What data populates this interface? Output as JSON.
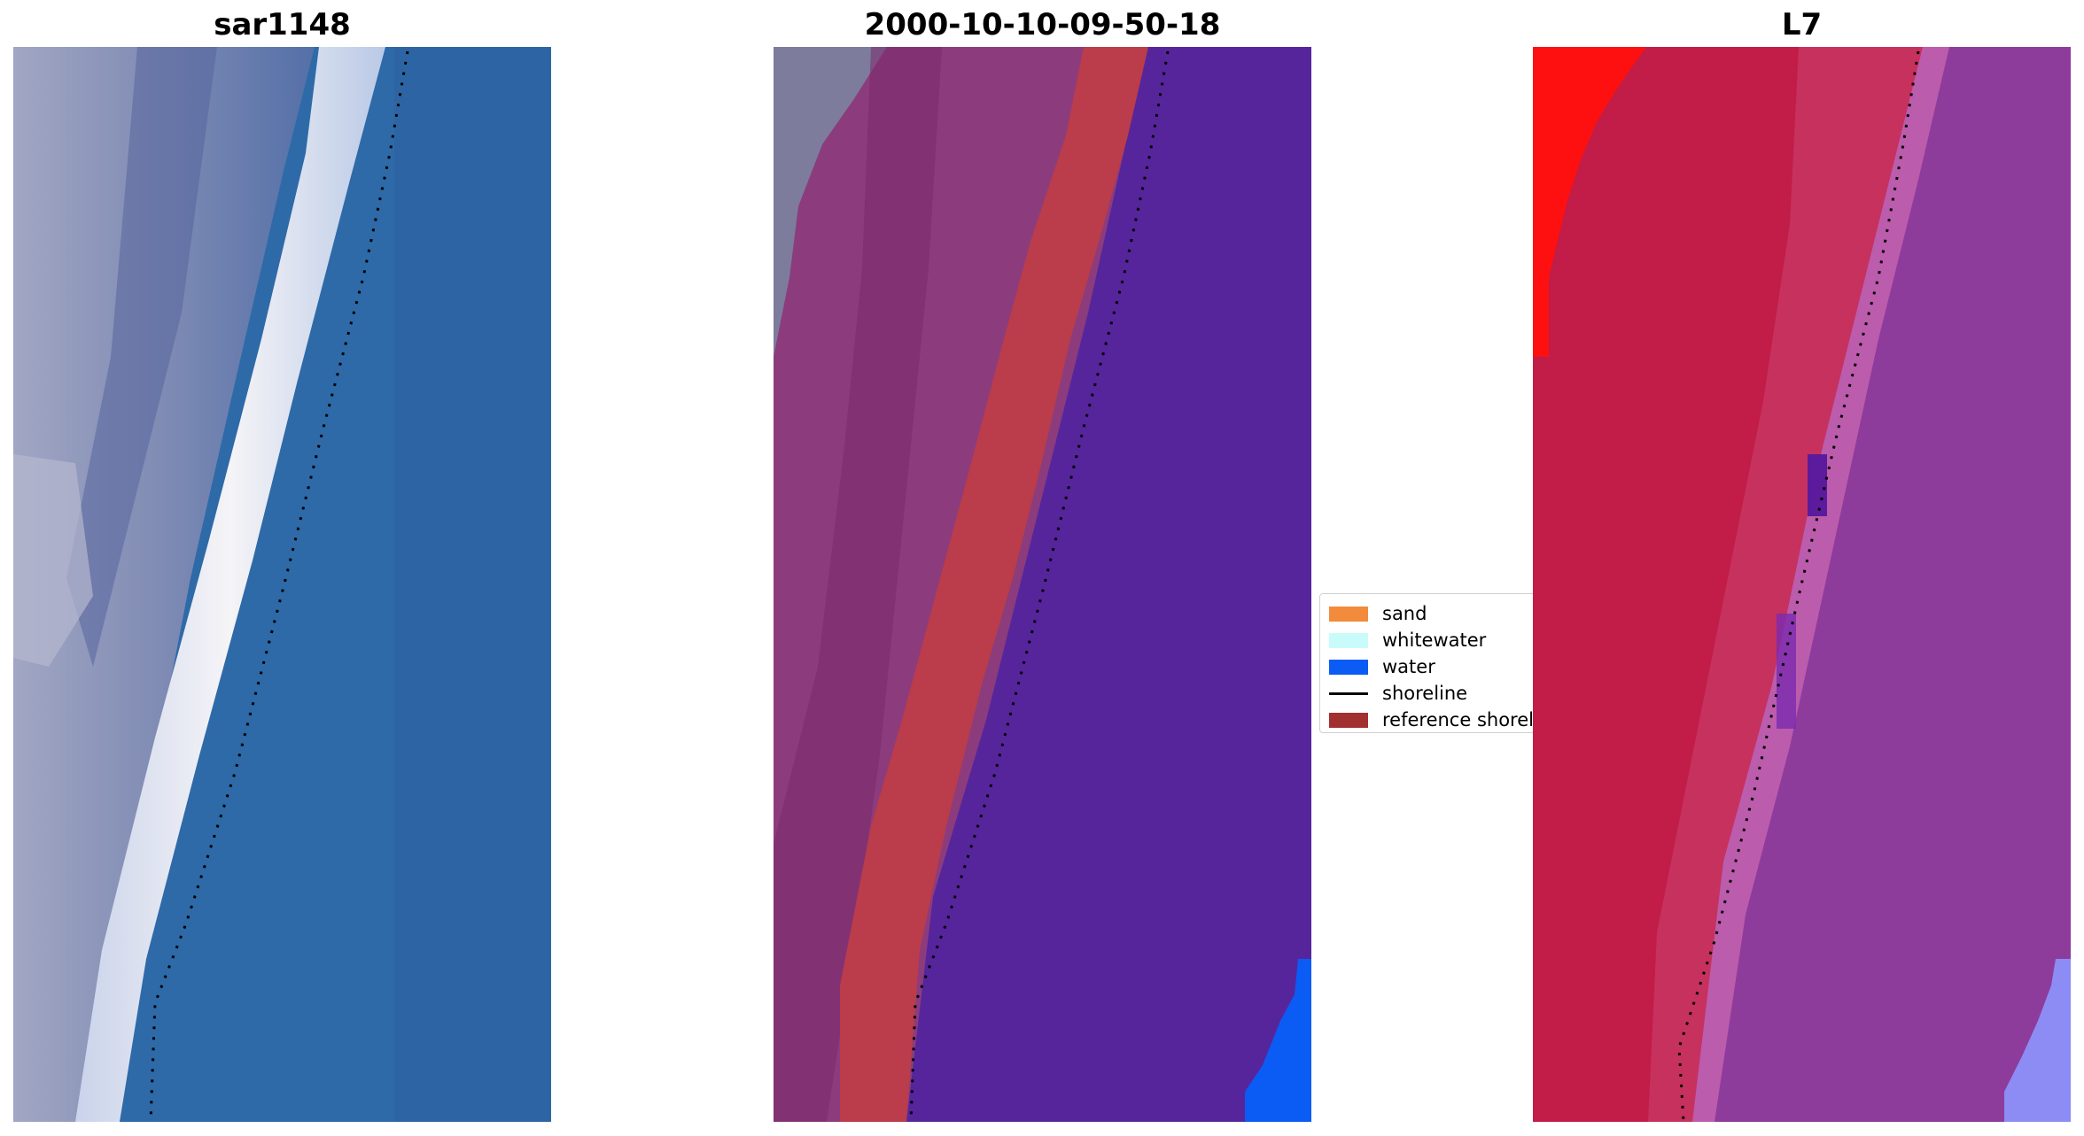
{
  "panels": [
    {
      "title": "sar1148"
    },
    {
      "title": "2000-10-10-09-50-18"
    },
    {
      "title": "L7"
    }
  ],
  "legend": {
    "items": [
      {
        "label": "sand",
        "color": "#f28c3c"
      },
      {
        "label": "whitewater",
        "color": "#c9fbfb"
      },
      {
        "label": "water",
        "color": "#0a5cf5"
      },
      {
        "label": "shoreline",
        "color": "#000000"
      },
      {
        "label": "reference shoreline",
        "color": "#a2302f"
      }
    ]
  },
  "colors": {
    "sar_water": "#2e6aa8",
    "sar_land": "#8d93b8",
    "sar_foam": "#eef0f6",
    "class_land": "#8c3c7c",
    "class_refband": "#bb3c4a",
    "class_water": "#56259c",
    "class_water_edge": "#0a5cf5",
    "l7_land": "#c21c48",
    "l7_water": "#8e3c9c",
    "l7_hot": "#ff1010",
    "l7_edge": "#8d8cf5"
  }
}
